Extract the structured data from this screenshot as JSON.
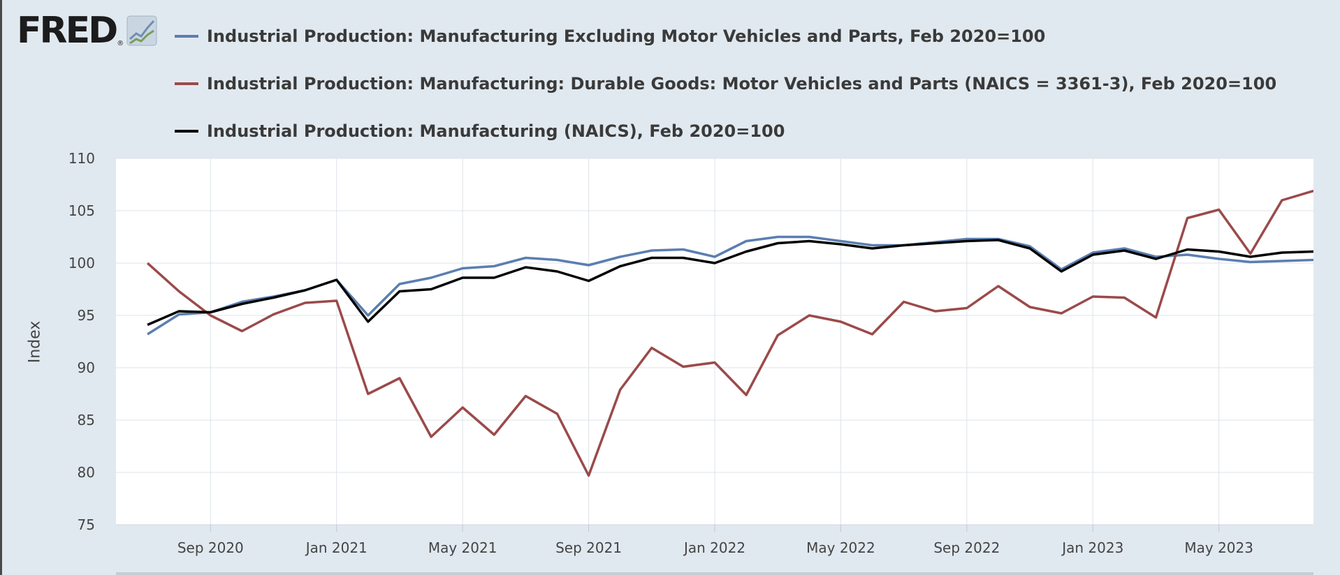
{
  "logo": {
    "text": "FRED",
    "reg": "®"
  },
  "colors": {
    "background": "#e1e9f0",
    "plot_background": "#ffffff",
    "gridline": "#dde3e8"
  },
  "chart_data": {
    "type": "line",
    "ylabel": "Index",
    "ylim": [
      75,
      110
    ],
    "yticks": [
      75,
      80,
      85,
      90,
      95,
      100,
      105,
      110
    ],
    "xlim": [
      "2020-06",
      "2023-08"
    ],
    "xticks": [
      {
        "label": "Sep 2020",
        "date": "2020-09"
      },
      {
        "label": "Jan 2021",
        "date": "2021-01"
      },
      {
        "label": "May 2021",
        "date": "2021-05"
      },
      {
        "label": "Sep 2021",
        "date": "2021-09"
      },
      {
        "label": "Jan 2022",
        "date": "2022-01"
      },
      {
        "label": "May 2022",
        "date": "2022-05"
      },
      {
        "label": "Sep 2022",
        "date": "2022-09"
      },
      {
        "label": "Jan 2023",
        "date": "2023-01"
      },
      {
        "label": "May 2023",
        "date": "2023-05"
      }
    ],
    "grid": true,
    "legend_position": "top",
    "x": [
      "2020-07",
      "2020-08",
      "2020-09",
      "2020-10",
      "2020-11",
      "2020-12",
      "2021-01",
      "2021-02",
      "2021-03",
      "2021-04",
      "2021-05",
      "2021-06",
      "2021-07",
      "2021-08",
      "2021-09",
      "2021-10",
      "2021-11",
      "2021-12",
      "2022-01",
      "2022-02",
      "2022-03",
      "2022-04",
      "2022-05",
      "2022-06",
      "2022-07",
      "2022-08",
      "2022-09",
      "2022-10",
      "2022-11",
      "2022-12",
      "2023-01",
      "2023-02",
      "2023-03",
      "2023-04",
      "2023-05",
      "2023-06",
      "2023-07",
      "2023-08"
    ],
    "series": [
      {
        "name": "Industrial Production: Manufacturing Excluding Motor Vehicles and Parts, Feb 2020=100",
        "color": "#5b7eb0",
        "values": [
          93.2,
          95.1,
          95.3,
          96.3,
          96.8,
          97.4,
          98.4,
          95.0,
          98.0,
          98.6,
          99.5,
          99.7,
          100.5,
          100.3,
          99.8,
          100.6,
          101.2,
          101.3,
          100.6,
          102.1,
          102.5,
          102.5,
          102.1,
          101.7,
          101.7,
          102.0,
          102.3,
          102.3,
          101.6,
          99.4,
          101.0,
          101.4,
          100.6,
          100.8,
          100.4,
          100.1,
          100.2,
          100.3
        ]
      },
      {
        "name": "Industrial Production: Manufacturing: Durable Goods: Motor Vehicles and Parts (NAICS = 3361-3), Feb 2020=100",
        "color": "#9b4a4a",
        "values": [
          100.0,
          97.3,
          95.0,
          93.5,
          95.1,
          96.2,
          96.4,
          87.5,
          89.0,
          83.4,
          86.2,
          83.6,
          87.3,
          85.6,
          79.7,
          87.9,
          91.9,
          90.1,
          90.5,
          87.4,
          93.1,
          95.0,
          94.4,
          93.2,
          96.3,
          95.4,
          95.7,
          97.8,
          95.8,
          95.2,
          96.8,
          96.7,
          94.8,
          104.3,
          105.1,
          100.9,
          106.0,
          106.9
        ]
      },
      {
        "name": "Industrial Production: Manufacturing (NAICS), Feb 2020=100",
        "color": "#000000",
        "values": [
          94.1,
          95.4,
          95.3,
          96.1,
          96.7,
          97.4,
          98.4,
          94.4,
          97.3,
          97.5,
          98.6,
          98.6,
          99.6,
          99.2,
          98.3,
          99.7,
          100.5,
          100.5,
          100.0,
          101.1,
          101.9,
          102.1,
          101.8,
          101.4,
          101.7,
          101.9,
          102.1,
          102.2,
          101.4,
          99.2,
          100.8,
          101.2,
          100.4,
          101.3,
          101.1,
          100.6,
          101.0,
          101.1
        ]
      }
    ]
  }
}
